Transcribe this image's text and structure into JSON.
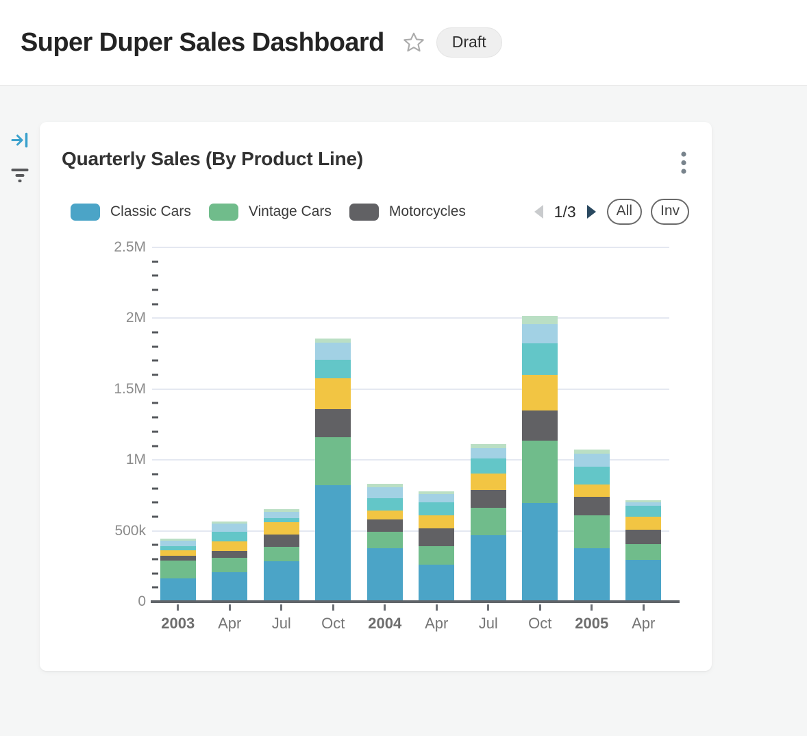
{
  "colors": {
    "page_background": "#f5f6f6",
    "card_background": "#ffffff",
    "accent_blue": "#3ba1cc",
    "gridline": "#e4e8f1",
    "axis": "#606469",
    "pager_prev_disabled": "#c9cbcd",
    "pager_next": "#2a4960"
  },
  "header": {
    "title": "Super Duper Sales Dashboard",
    "badge_label": "Draft",
    "star_icon": "star-outline"
  },
  "side_rail": {
    "icons": [
      {
        "name": "collapse-panel-icon",
        "glyph": "arrow-to-bar-right",
        "color": "#3ba1cc"
      },
      {
        "name": "filter-icon",
        "glyph": "filter-lines",
        "color": "#58595b"
      }
    ]
  },
  "card": {
    "title": "Quarterly Sales (By Product Line)",
    "menu_icon": "kebab-vertical",
    "legend": {
      "items": [
        {
          "label": "Classic Cars",
          "color": "#4BA4C7"
        },
        {
          "label": "Vintage Cars",
          "color": "#70BC8B"
        },
        {
          "label": "Motorcycles",
          "color": "#616164"
        }
      ],
      "pagination": {
        "display": "1/3",
        "current_page": 1,
        "total_pages": 3,
        "prev_icon": "triangle-left",
        "next_icon": "triangle-right"
      },
      "buttons": [
        {
          "label": "All"
        },
        {
          "label": "Inv"
        }
      ]
    }
  },
  "chart_data": {
    "type": "bar",
    "stacked": true,
    "title": "Quarterly Sales (By Product Line)",
    "legend_position": "top",
    "grid": true,
    "categories": [
      "2003",
      "Apr",
      "Jul",
      "Oct",
      "2004",
      "Apr",
      "Jul",
      "Oct",
      "2005",
      "Apr"
    ],
    "bold_category_indices": [
      0,
      4,
      8
    ],
    "y_axis": {
      "min": 0,
      "max": 2500000,
      "major_interval": 500000,
      "minor_interval": 100000,
      "tick_labels": [
        "0",
        "500k",
        "1M",
        "1.5M",
        "2M",
        "2.5M"
      ]
    },
    "series": [
      {
        "name": "Classic Cars",
        "color": "#4BA4C7",
        "values": [
          166000,
          209000,
          285000,
          821000,
          375000,
          259000,
          469000,
          695000,
          378000,
          295000
        ]
      },
      {
        "name": "Vintage Cars",
        "color": "#70BC8B",
        "values": [
          122000,
          100000,
          100000,
          341000,
          116000,
          132000,
          193000,
          440000,
          230000,
          113000
        ]
      },
      {
        "name": "Motorcycles",
        "color": "#616164",
        "values": [
          35000,
          48000,
          90000,
          198000,
          88000,
          126000,
          124000,
          215000,
          132000,
          100000
        ]
      },
      {
        "name": "Unlabeled series (yellow)",
        "color": "#F2C543",
        "values": [
          39000,
          69000,
          84000,
          217000,
          64000,
          92000,
          118000,
          250000,
          85000,
          93000
        ]
      },
      {
        "name": "Unlabeled series (teal)",
        "color": "#63C6C8",
        "values": [
          32000,
          68000,
          32000,
          132000,
          85000,
          92000,
          108000,
          223000,
          129000,
          77000
        ]
      },
      {
        "name": "Unlabeled series (light blue)",
        "color": "#A2D1E4",
        "values": [
          35000,
          56000,
          45000,
          117000,
          80000,
          58000,
          72000,
          137000,
          92000,
          23000
        ]
      },
      {
        "name": "Unlabeled series (light green)",
        "color": "#BADFC4",
        "values": [
          16000,
          16000,
          19000,
          32000,
          23000,
          19000,
          29000,
          58000,
          26000,
          16000
        ]
      }
    ]
  }
}
